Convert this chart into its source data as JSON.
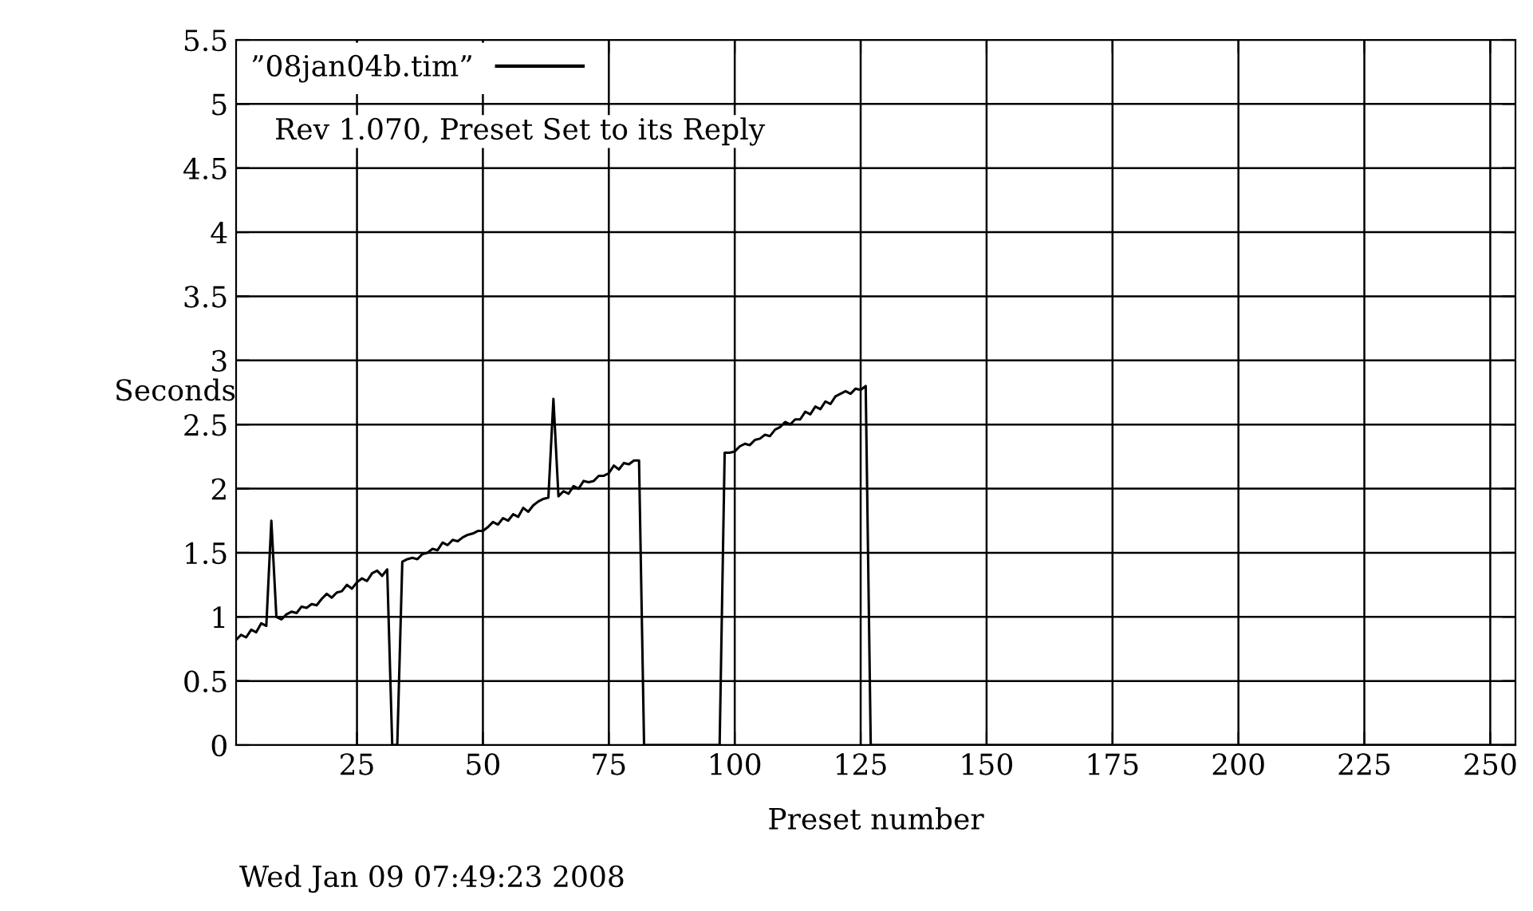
{
  "chart_data": {
    "type": "line",
    "title": "Rev 1.070, Preset Set to its Reply",
    "xlabel": "Preset number",
    "ylabel": "Seconds",
    "annotations": [
      "Wed Jan 09 07:49:23 2008"
    ],
    "xlim": [
      1,
      255
    ],
    "xticks": [
      25,
      50,
      75,
      100,
      125,
      150,
      175,
      200,
      225,
      250
    ],
    "ylim": [
      0,
      5.5
    ],
    "yticks": [
      0,
      0.5,
      1,
      1.5,
      2,
      2.5,
      3,
      3.5,
      4,
      4.5,
      5,
      5.5
    ],
    "grid": true,
    "legend": "top left",
    "marker": "none",
    "line_style": "solid",
    "series": [
      {
        "name": "”08jan04b.tim”",
        "color": "#000000",
        "x": [
          1,
          2,
          3,
          4,
          5,
          6,
          7,
          8,
          9,
          10,
          11,
          12,
          13,
          14,
          15,
          16,
          17,
          18,
          19,
          20,
          21,
          22,
          23,
          24,
          25,
          26,
          27,
          28,
          29,
          30,
          31,
          32,
          33,
          34,
          35,
          36,
          37,
          38,
          39,
          40,
          41,
          42,
          43,
          44,
          45,
          46,
          47,
          48,
          49,
          50,
          51,
          52,
          53,
          54,
          55,
          56,
          57,
          58,
          59,
          60,
          61,
          62,
          63,
          64,
          65,
          66,
          67,
          68,
          69,
          70,
          71,
          72,
          73,
          74,
          75,
          76,
          77,
          78,
          79,
          80,
          81,
          82,
          97,
          98,
          99,
          100,
          101,
          102,
          103,
          104,
          105,
          106,
          107,
          108,
          109,
          110,
          111,
          112,
          113,
          114,
          115,
          116,
          117,
          118,
          119,
          120,
          121,
          122,
          123,
          124,
          125,
          126,
          127,
          255
        ],
        "values": [
          0.82,
          0.86,
          0.84,
          0.9,
          0.88,
          0.95,
          0.93,
          1.75,
          1.0,
          0.98,
          1.02,
          1.04,
          1.03,
          1.08,
          1.07,
          1.1,
          1.09,
          1.14,
          1.18,
          1.15,
          1.19,
          1.2,
          1.25,
          1.22,
          1.27,
          1.3,
          1.28,
          1.34,
          1.36,
          1.32,
          1.37,
          0,
          0,
          1.43,
          1.45,
          1.46,
          1.45,
          1.49,
          1.5,
          1.53,
          1.52,
          1.58,
          1.56,
          1.6,
          1.59,
          1.62,
          1.64,
          1.65,
          1.67,
          1.67,
          1.7,
          1.74,
          1.72,
          1.77,
          1.75,
          1.8,
          1.78,
          1.85,
          1.82,
          1.87,
          1.9,
          1.92,
          1.93,
          2.7,
          1.94,
          1.98,
          1.96,
          2.02,
          2.0,
          2.06,
          2.05,
          2.06,
          2.1,
          2.1,
          2.12,
          2.18,
          2.15,
          2.2,
          2.19,
          2.22,
          2.22,
          0,
          0,
          2.28,
          2.28,
          2.29,
          2.33,
          2.35,
          2.34,
          2.38,
          2.39,
          2.42,
          2.41,
          2.46,
          2.48,
          2.52,
          2.5,
          2.54,
          2.54,
          2.6,
          2.58,
          2.64,
          2.62,
          2.68,
          2.66,
          2.72,
          2.74,
          2.76,
          2.74,
          2.78,
          2.77,
          2.8,
          0,
          0
        ]
      }
    ]
  }
}
